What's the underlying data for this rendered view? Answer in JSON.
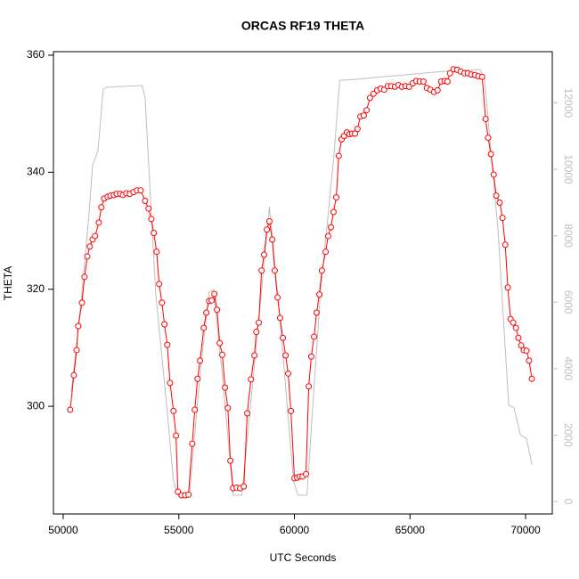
{
  "chart_data": {
    "type": "line",
    "title": "ORCAS RF19 THETA",
    "x_label": "UTC Seconds",
    "y_label": "THETA",
    "xlim": [
      49577,
      71154
    ],
    "ylim": [
      281.6,
      360.6
    ],
    "y2lim": [
      -375,
      13540
    ],
    "xticks": [
      50000,
      55000,
      60000,
      65000,
      70000
    ],
    "yticks": [
      300,
      320,
      340,
      360
    ],
    "y2ticks": [
      0,
      2000,
      4000,
      6000,
      8000,
      10000,
      12000
    ],
    "series": [
      {
        "color": "#bebebe",
        "axis": "y2",
        "markers": false,
        "x": [
          50350,
          50730,
          51120,
          51270,
          51500,
          51730,
          51880,
          53420,
          53540,
          54000,
          54380,
          54770,
          54960,
          55460,
          55920,
          56310,
          56500,
          56880,
          57350,
          57730,
          58230,
          58920,
          59380,
          59960,
          60150,
          60540,
          61120,
          61690,
          61960,
          62650,
          66500,
          68040,
          68230,
          68810,
          69270,
          69500,
          69770,
          70040,
          70270
        ],
        "values": [
          3300,
          5710,
          8660,
          10130,
          10540,
          12410,
          12470,
          12520,
          12140,
          6250,
          3570,
          620,
          190,
          190,
          3830,
          6300,
          6380,
          3830,
          190,
          190,
          3830,
          8870,
          5440,
          620,
          190,
          190,
          6250,
          10270,
          12680,
          12710,
          12950,
          13000,
          12680,
          8120,
          2900,
          2820,
          2010,
          1900,
          1100
        ]
      },
      {
        "color": "#ff0000",
        "markers": true,
        "x": [
          50300,
          50460,
          50580,
          50650,
          50810,
          50920,
          51040,
          51150,
          51270,
          51380,
          51540,
          51650,
          51770,
          51920,
          52040,
          52190,
          52310,
          52460,
          52580,
          52730,
          52880,
          53040,
          53190,
          53350,
          53540,
          53690,
          53810,
          53920,
          54040,
          54150,
          54270,
          54380,
          54500,
          54620,
          54770,
          54880,
          54960,
          55120,
          55270,
          55420,
          55580,
          55690,
          55810,
          55920,
          56080,
          56190,
          56310,
          56420,
          56540,
          56650,
          56770,
          56880,
          57000,
          57120,
          57230,
          57350,
          57500,
          57650,
          57810,
          57960,
          58120,
          58270,
          58350,
          58460,
          58580,
          58690,
          58810,
          58920,
          59040,
          59150,
          59270,
          59380,
          59500,
          59620,
          59730,
          59850,
          60000,
          60120,
          60230,
          60350,
          60500,
          60620,
          60730,
          60850,
          60960,
          61080,
          61190,
          61350,
          61460,
          61580,
          61690,
          61810,
          61920,
          62040,
          62150,
          62270,
          62380,
          62500,
          62620,
          62730,
          62850,
          63000,
          63120,
          63270,
          63420,
          63580,
          63730,
          63880,
          64040,
          64190,
          64350,
          64500,
          64650,
          64810,
          64960,
          65120,
          65270,
          65420,
          65580,
          65730,
          65880,
          66040,
          66190,
          66350,
          66500,
          66620,
          66730,
          66880,
          67040,
          67190,
          67350,
          67500,
          67650,
          67810,
          67960,
          68120,
          68270,
          68380,
          68500,
          68620,
          68730,
          68880,
          69000,
          69120,
          69230,
          69350,
          69460,
          69580,
          69690,
          69810,
          69920,
          70040,
          70150,
          70270
        ],
        "values": [
          299.4,
          305.3,
          309.6,
          313.7,
          317.7,
          322.1,
          325.6,
          327.3,
          328.5,
          329.1,
          331.4,
          334.0,
          335.5,
          335.8,
          336.0,
          336.1,
          336.3,
          336.3,
          336.1,
          336.4,
          336.3,
          336.6,
          336.9,
          336.9,
          335.1,
          333.8,
          332.0,
          329.6,
          326.4,
          320.9,
          317.7,
          314.0,
          310.5,
          304.0,
          299.2,
          295.0,
          285.4,
          284.8,
          284.8,
          284.9,
          293.6,
          299.4,
          304.7,
          307.8,
          313.4,
          316.0,
          318.0,
          318.1,
          319.2,
          316.5,
          310.8,
          308.8,
          303.2,
          299.7,
          290.7,
          286.0,
          286.1,
          286.0,
          286.3,
          298.8,
          304.6,
          308.7,
          312.7,
          314.3,
          323.2,
          325.9,
          330.2,
          331.6,
          328.5,
          323.2,
          318.6,
          315.1,
          311.7,
          308.7,
          305.6,
          299.2,
          287.7,
          287.8,
          288.0,
          288.0,
          288.4,
          303.4,
          308.5,
          311.9,
          316.0,
          319.1,
          323.2,
          326.4,
          329.1,
          330.6,
          333.2,
          335.7,
          342.8,
          345.6,
          346.2,
          346.8,
          346.5,
          346.6,
          346.6,
          347.4,
          349.5,
          349.7,
          350.6,
          352.7,
          353.4,
          354.0,
          354.3,
          354.1,
          354.7,
          354.7,
          354.6,
          354.9,
          354.6,
          354.7,
          354.6,
          355.2,
          355.6,
          355.5,
          355.5,
          354.4,
          354.1,
          353.7,
          354.0,
          355.5,
          355.6,
          355.5,
          356.9,
          357.6,
          357.5,
          357.2,
          356.9,
          356.9,
          356.7,
          356.6,
          356.4,
          356.3,
          349.1,
          345.9,
          343.1,
          339.6,
          336.0,
          334.8,
          332.2,
          327.6,
          320.3,
          314.9,
          314.3,
          313.4,
          311.7,
          310.4,
          309.6,
          309.5,
          307.8,
          304.7
        ]
      }
    ]
  }
}
